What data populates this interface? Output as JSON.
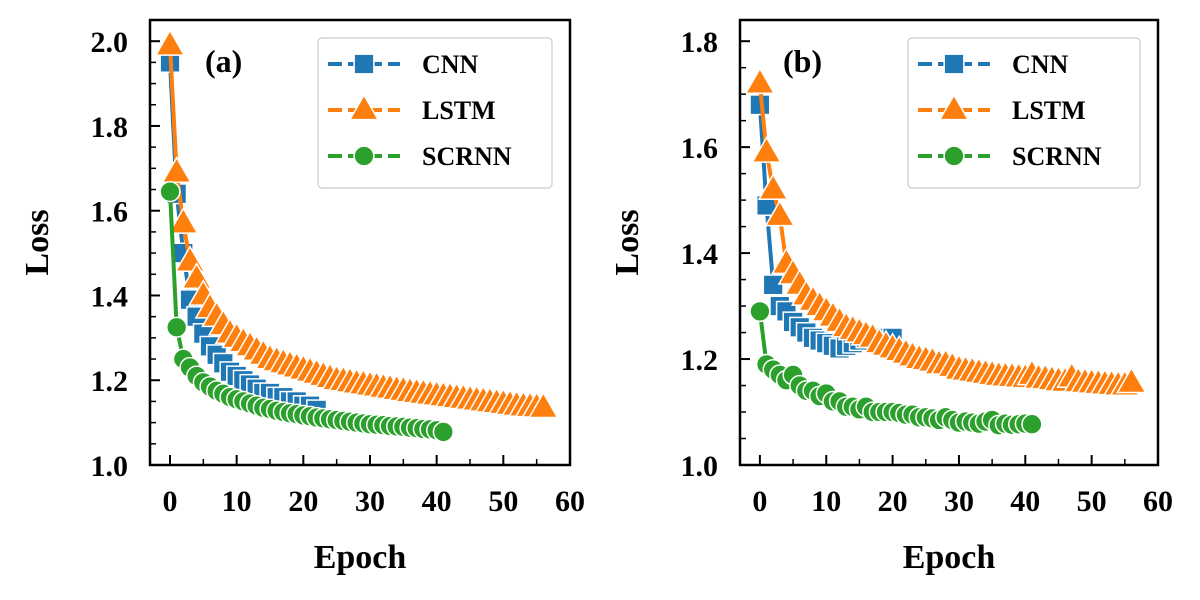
{
  "colors": {
    "CNN": "#1f77b4",
    "LSTM": "#ff7f0e",
    "SCRNN": "#2ca02c"
  },
  "chart_data": [
    {
      "type": "line",
      "panel_label": "(a)",
      "xlabel": "Epoch",
      "ylabel": "Loss",
      "xlim": [
        -3,
        60
      ],
      "ylim": [
        1.0,
        2.05
      ],
      "xticks": [
        0,
        10,
        20,
        30,
        40,
        50,
        60
      ],
      "yticks": [
        1.0,
        1.2,
        1.4,
        1.6,
        1.8,
        2.0
      ],
      "xtick_labels": [
        "0",
        "10",
        "20",
        "30",
        "40",
        "50",
        "60"
      ],
      "ytick_labels": [
        "1.0",
        "1.2",
        "1.4",
        "1.6",
        "1.8",
        "2.0"
      ],
      "legend_position": "top-right",
      "series": [
        {
          "name": "CNN",
          "marker": "square",
          "x": [
            0,
            1,
            2,
            3,
            4,
            5,
            6,
            7,
            8,
            9,
            10,
            11,
            12,
            13,
            14,
            15,
            16,
            17,
            18,
            19,
            20,
            21,
            22
          ],
          "y": [
            1.95,
            1.64,
            1.5,
            1.39,
            1.35,
            1.31,
            1.28,
            1.26,
            1.24,
            1.22,
            1.21,
            1.2,
            1.19,
            1.18,
            1.17,
            1.17,
            1.16,
            1.16,
            1.15,
            1.15,
            1.14,
            1.14,
            1.13
          ]
        },
        {
          "name": "LSTM",
          "marker": "triangle",
          "x": [
            0,
            1,
            2,
            3,
            4,
            5,
            6,
            7,
            8,
            9,
            10,
            11,
            12,
            13,
            14,
            15,
            16,
            17,
            18,
            19,
            20,
            21,
            22,
            23,
            24,
            25,
            26,
            27,
            28,
            29,
            30,
            31,
            32,
            33,
            34,
            35,
            36,
            37,
            38,
            39,
            40,
            41,
            42,
            43,
            44,
            45,
            46,
            47,
            48,
            49,
            50,
            51,
            52,
            53,
            54,
            55,
            56
          ],
          "y": [
            1.99,
            1.69,
            1.57,
            1.48,
            1.44,
            1.4,
            1.37,
            1.35,
            1.33,
            1.31,
            1.3,
            1.29,
            1.28,
            1.27,
            1.26,
            1.25,
            1.245,
            1.24,
            1.235,
            1.23,
            1.225,
            1.22,
            1.215,
            1.21,
            1.205,
            1.2,
            1.198,
            1.195,
            1.192,
            1.19,
            1.187,
            1.185,
            1.182,
            1.18,
            1.177,
            1.175,
            1.172,
            1.17,
            1.168,
            1.166,
            1.164,
            1.162,
            1.16,
            1.158,
            1.156,
            1.154,
            1.152,
            1.15,
            1.148,
            1.146,
            1.144,
            1.142,
            1.14,
            1.138,
            1.137,
            1.136,
            1.135
          ]
        },
        {
          "name": "SCRNN",
          "marker": "circle",
          "x": [
            0,
            1,
            2,
            3,
            4,
            5,
            6,
            7,
            8,
            9,
            10,
            11,
            12,
            13,
            14,
            15,
            16,
            17,
            18,
            19,
            20,
            21,
            22,
            23,
            24,
            25,
            26,
            27,
            28,
            29,
            30,
            31,
            32,
            33,
            34,
            35,
            36,
            37,
            38,
            39,
            40,
            41
          ],
          "y": [
            1.645,
            1.325,
            1.25,
            1.23,
            1.21,
            1.195,
            1.185,
            1.175,
            1.168,
            1.16,
            1.155,
            1.15,
            1.145,
            1.14,
            1.135,
            1.132,
            1.128,
            1.125,
            1.122,
            1.12,
            1.117,
            1.115,
            1.112,
            1.11,
            1.108,
            1.106,
            1.104,
            1.102,
            1.1,
            1.098,
            1.096,
            1.095,
            1.094,
            1.092,
            1.091,
            1.09,
            1.088,
            1.087,
            1.085,
            1.084,
            1.082,
            1.078
          ]
        }
      ]
    },
    {
      "type": "line",
      "panel_label": "(b)",
      "xlabel": "Epoch",
      "ylabel": "Loss",
      "xlim": [
        -3,
        60
      ],
      "ylim": [
        1.0,
        1.84
      ],
      "xticks": [
        0,
        10,
        20,
        30,
        40,
        50,
        60
      ],
      "yticks": [
        1.0,
        1.2,
        1.4,
        1.6,
        1.8
      ],
      "xtick_labels": [
        "0",
        "10",
        "20",
        "30",
        "40",
        "50",
        "60"
      ],
      "ytick_labels": [
        "1.0",
        "1.2",
        "1.4",
        "1.6",
        "1.8"
      ],
      "legend_position": "top-right",
      "series": [
        {
          "name": "CNN",
          "marker": "square",
          "x": [
            0,
            1,
            2,
            3,
            4,
            5,
            6,
            7,
            8,
            9,
            10,
            11,
            12,
            13,
            14,
            15,
            16,
            17,
            18,
            19,
            20
          ],
          "y": [
            1.68,
            1.49,
            1.34,
            1.3,
            1.29,
            1.27,
            1.26,
            1.25,
            1.24,
            1.235,
            1.23,
            1.225,
            1.22,
            1.225,
            1.23,
            1.235,
            1.24,
            1.24,
            1.24,
            1.24,
            1.24
          ]
        },
        {
          "name": "LSTM",
          "marker": "triangle",
          "x": [
            0,
            1,
            2,
            3,
            4,
            5,
            6,
            7,
            8,
            9,
            10,
            11,
            12,
            13,
            14,
            15,
            16,
            17,
            18,
            19,
            20,
            21,
            22,
            23,
            24,
            25,
            26,
            27,
            28,
            29,
            30,
            31,
            32,
            33,
            34,
            35,
            36,
            37,
            38,
            39,
            40,
            41,
            42,
            43,
            44,
            45,
            46,
            47,
            48,
            49,
            50,
            51,
            52,
            53,
            54,
            55,
            56
          ],
          "y": [
            1.72,
            1.59,
            1.52,
            1.47,
            1.38,
            1.36,
            1.34,
            1.32,
            1.31,
            1.3,
            1.29,
            1.28,
            1.27,
            1.26,
            1.255,
            1.25,
            1.245,
            1.24,
            1.23,
            1.225,
            1.22,
            1.215,
            1.21,
            1.205,
            1.2,
            1.198,
            1.195,
            1.19,
            1.19,
            1.185,
            1.18,
            1.178,
            1.176,
            1.174,
            1.172,
            1.17,
            1.168,
            1.167,
            1.166,
            1.165,
            1.164,
            1.17,
            1.163,
            1.162,
            1.16,
            1.158,
            1.157,
            1.165,
            1.156,
            1.155,
            1.154,
            1.153,
            1.152,
            1.151,
            1.15,
            1.15,
            1.155
          ]
        },
        {
          "name": "SCRNN",
          "marker": "circle",
          "x": [
            0,
            1,
            2,
            3,
            4,
            5,
            6,
            7,
            8,
            9,
            10,
            11,
            12,
            13,
            14,
            15,
            16,
            17,
            18,
            19,
            20,
            21,
            22,
            23,
            24,
            25,
            26,
            27,
            28,
            29,
            30,
            31,
            32,
            33,
            34,
            35,
            36,
            37,
            38,
            39,
            40,
            41
          ],
          "y": [
            1.29,
            1.19,
            1.18,
            1.17,
            1.16,
            1.17,
            1.15,
            1.14,
            1.14,
            1.13,
            1.135,
            1.12,
            1.12,
            1.11,
            1.11,
            1.105,
            1.11,
            1.1,
            1.1,
            1.1,
            1.1,
            1.098,
            1.095,
            1.095,
            1.09,
            1.09,
            1.088,
            1.085,
            1.09,
            1.085,
            1.08,
            1.082,
            1.08,
            1.078,
            1.082,
            1.085,
            1.075,
            1.078,
            1.076,
            1.077,
            1.078,
            1.077
          ]
        }
      ]
    }
  ]
}
